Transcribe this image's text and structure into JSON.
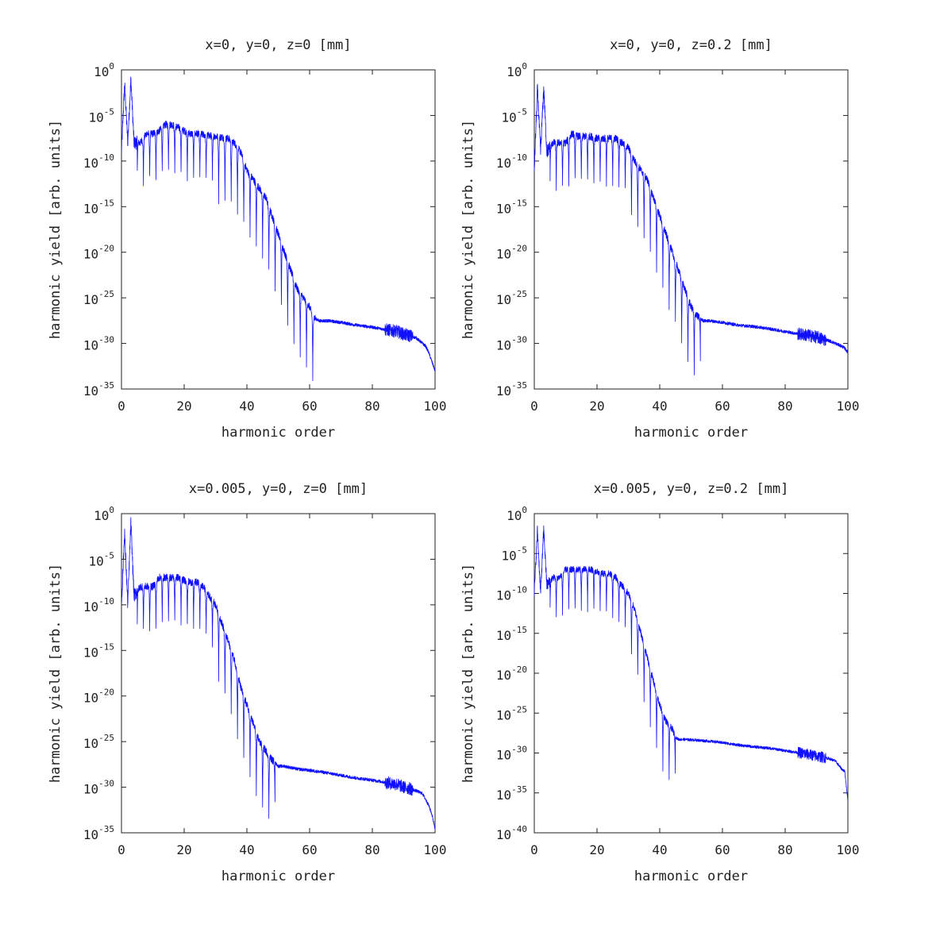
{
  "chart_data": [
    {
      "type": "line",
      "title": "x=0, y=0, z=0 [mm]",
      "xlabel": "harmonic order",
      "ylabel": "harmonic yield [arb. units]",
      "xlim": [
        0,
        100
      ],
      "ylim": [
        1e-35,
        1
      ],
      "yscale": "log",
      "xticks": [
        "0",
        "20",
        "40",
        "60",
        "80",
        "100"
      ],
      "yticks": [
        {
          "base": "10",
          "exp": "0"
        },
        {
          "base": "10",
          "exp": "-5"
        },
        {
          "base": "10",
          "exp": "-10"
        },
        {
          "base": "10",
          "exp": "-15"
        },
        {
          "base": "10",
          "exp": "-20"
        },
        {
          "base": "10",
          "exp": "-25"
        },
        {
          "base": "10",
          "exp": "-30"
        },
        {
          "base": "10",
          "exp": "-35"
        }
      ],
      "color": "#1010ff",
      "series": [
        {
          "x": [
            0,
            1,
            2,
            3,
            4,
            6,
            8,
            10,
            12,
            14,
            16,
            18,
            20,
            22,
            24,
            26,
            28,
            30,
            32,
            34,
            36,
            38,
            40,
            42,
            44,
            46,
            48,
            50,
            52,
            54,
            56,
            58,
            60,
            61,
            62,
            63,
            64,
            66,
            70,
            75,
            80,
            85,
            88,
            90,
            92,
            94,
            96,
            97,
            98,
            99,
            100
          ],
          "y": [
            1e-09,
            0.03,
            1e-08,
            0.1,
            1e-08,
            1e-08,
            1e-07,
            1e-07,
            2e-07,
            1e-06,
            1e-06,
            5e-07,
            2e-07,
            1e-07,
            1e-07,
            8e-08,
            6e-08,
            5e-08,
            4e-08,
            3e-08,
            1e-08,
            1e-09,
            1e-11,
            1e-12,
            1e-13,
            1e-14,
            1e-16,
            1e-18,
            1e-20,
            1e-22,
            1e-24,
            1e-25,
            1e-26,
            1e-27,
            5e-28,
            3e-28,
            3e-28,
            3e-28,
            2e-28,
            1e-28,
            6e-29,
            3e-29,
            2e-29,
            1e-29,
            7e-30,
            4e-30,
            1e-30,
            5e-31,
            1e-31,
            1e-32,
            1e-33
          ]
        }
      ],
      "dips_until": 62
    },
    {
      "type": "line",
      "title": "x=0, y=0, z=0.2 [mm]",
      "xlabel": "harmonic order",
      "ylabel": "harmonic yield [arb. units]",
      "xlim": [
        0,
        100
      ],
      "ylim": [
        1e-35,
        1
      ],
      "yscale": "log",
      "xticks": [
        "0",
        "20",
        "40",
        "60",
        "80",
        "100"
      ],
      "yticks": [
        {
          "base": "10",
          "exp": "0"
        },
        {
          "base": "10",
          "exp": "-5"
        },
        {
          "base": "10",
          "exp": "-10"
        },
        {
          "base": "10",
          "exp": "-15"
        },
        {
          "base": "10",
          "exp": "-20"
        },
        {
          "base": "10",
          "exp": "-25"
        },
        {
          "base": "10",
          "exp": "-30"
        },
        {
          "base": "10",
          "exp": "-35"
        }
      ],
      "color": "#1010ff",
      "series": [
        {
          "x": [
            0,
            1,
            2,
            3,
            4,
            6,
            8,
            10,
            12,
            14,
            16,
            18,
            20,
            22,
            24,
            26,
            28,
            30,
            32,
            34,
            36,
            38,
            40,
            42,
            44,
            46,
            48,
            50,
            52,
            53,
            54,
            56,
            60,
            65,
            70,
            75,
            80,
            85,
            88,
            90,
            92,
            94,
            96,
            98,
            99,
            100
          ],
          "y": [
            1e-11,
            0.01,
            1e-09,
            0.01,
            1e-09,
            1e-08,
            1e-08,
            1e-08,
            1e-07,
            5e-08,
            5e-08,
            5e-08,
            3e-08,
            3e-08,
            3e-08,
            3e-08,
            1e-08,
            3e-09,
            1e-10,
            1e-11,
            1e-12,
            1e-14,
            1e-16,
            1e-18,
            1e-20,
            1e-22,
            1e-24,
            1e-26,
            1e-27,
            5e-28,
            3e-28,
            3e-28,
            2e-28,
            1e-28,
            7e-29,
            4e-29,
            2e-29,
            1e-29,
            7e-30,
            5e-30,
            3e-30,
            2e-30,
            1e-30,
            5e-31,
            3e-31,
            1e-31
          ]
        }
      ],
      "dips_until": 53
    },
    {
      "type": "line",
      "title": "x=0.005, y=0, z=0 [mm]",
      "xlabel": "harmonic order",
      "ylabel": "harmonic yield [arb. units]",
      "xlim": [
        0,
        100
      ],
      "ylim": [
        1e-35,
        1
      ],
      "yscale": "log",
      "xticks": [
        "0",
        "20",
        "40",
        "60",
        "80",
        "100"
      ],
      "yticks": [
        {
          "base": "10",
          "exp": "0"
        },
        {
          "base": "10",
          "exp": "-5"
        },
        {
          "base": "10",
          "exp": "-10"
        },
        {
          "base": "10",
          "exp": "-15"
        },
        {
          "base": "10",
          "exp": "-20"
        },
        {
          "base": "10",
          "exp": "-25"
        },
        {
          "base": "10",
          "exp": "-30"
        },
        {
          "base": "10",
          "exp": "-35"
        }
      ],
      "color": "#1010ff",
      "series": [
        {
          "x": [
            0,
            1,
            2,
            3,
            4,
            6,
            8,
            10,
            12,
            14,
            16,
            18,
            20,
            22,
            24,
            26,
            28,
            30,
            32,
            34,
            36,
            38,
            40,
            42,
            44,
            46,
            48,
            49,
            50,
            52,
            56,
            60,
            65,
            70,
            75,
            80,
            85,
            88,
            90,
            92,
            94,
            96,
            98,
            99,
            100
          ],
          "y": [
            1e-10,
            0.01,
            1e-10,
            0.1,
            1e-09,
            1e-08,
            1e-08,
            1e-08,
            1e-07,
            1e-07,
            1e-07,
            1e-07,
            5e-08,
            3e-08,
            3e-08,
            1e-08,
            1e-09,
            1e-10,
            1e-12,
            1e-14,
            1e-16,
            1e-19,
            1e-21,
            1e-23,
            1e-25,
            1e-26,
            1e-27,
            5e-28,
            2e-28,
            2e-28,
            1e-28,
            7e-29,
            4e-29,
            2e-29,
            1e-29,
            6e-30,
            3e-30,
            2e-30,
            1e-30,
            7e-31,
            4e-31,
            2e-31,
            1e-32,
            1e-33,
            3e-35
          ]
        }
      ],
      "dips_until": 49
    },
    {
      "type": "line",
      "title": "x=0.005, y=0, z=0.2 [mm]",
      "xlabel": "harmonic order",
      "ylabel": "harmonic yield [arb. units]",
      "xlim": [
        0,
        100
      ],
      "ylim": [
        1e-40,
        1
      ],
      "yscale": "log",
      "xticks": [
        "0",
        "20",
        "40",
        "60",
        "80",
        "100"
      ],
      "yticks": [
        {
          "base": "10",
          "exp": "0"
        },
        {
          "base": "10",
          "exp": "-5"
        },
        {
          "base": "10",
          "exp": "-10"
        },
        {
          "base": "10",
          "exp": "-15"
        },
        {
          "base": "10",
          "exp": "-20"
        },
        {
          "base": "10",
          "exp": "-25"
        },
        {
          "base": "10",
          "exp": "-30"
        },
        {
          "base": "10",
          "exp": "-35"
        },
        {
          "base": "10",
          "exp": "-40"
        }
      ],
      "color": "#1010ff",
      "series": [
        {
          "x": [
            0,
            1,
            2,
            3,
            4,
            6,
            8,
            10,
            12,
            14,
            16,
            18,
            20,
            22,
            24,
            26,
            28,
            30,
            32,
            34,
            36,
            38,
            40,
            42,
            44,
            45,
            46,
            48,
            52,
            56,
            60,
            65,
            70,
            75,
            80,
            85,
            88,
            90,
            92,
            94,
            96,
            98,
            99,
            100
          ],
          "y": [
            1e-10,
            0.01,
            1e-10,
            0.01,
            1e-09,
            1e-08,
            1e-08,
            1e-07,
            1e-07,
            1e-07,
            1e-07,
            1e-07,
            5e-08,
            3e-08,
            3e-08,
            1e-08,
            1e-09,
            1e-10,
            1e-12,
            1e-15,
            1e-18,
            1e-21,
            1e-24,
            1e-26,
            1e-27,
            1e-28,
            5e-29,
            5e-29,
            4e-29,
            3e-29,
            2e-29,
            1e-29,
            6e-30,
            4e-30,
            2e-30,
            1e-30,
            6e-31,
            4e-31,
            3e-31,
            2e-31,
            1e-31,
            1e-32,
            5e-33,
            1e-36
          ]
        }
      ],
      "dips_until": 45
    }
  ]
}
